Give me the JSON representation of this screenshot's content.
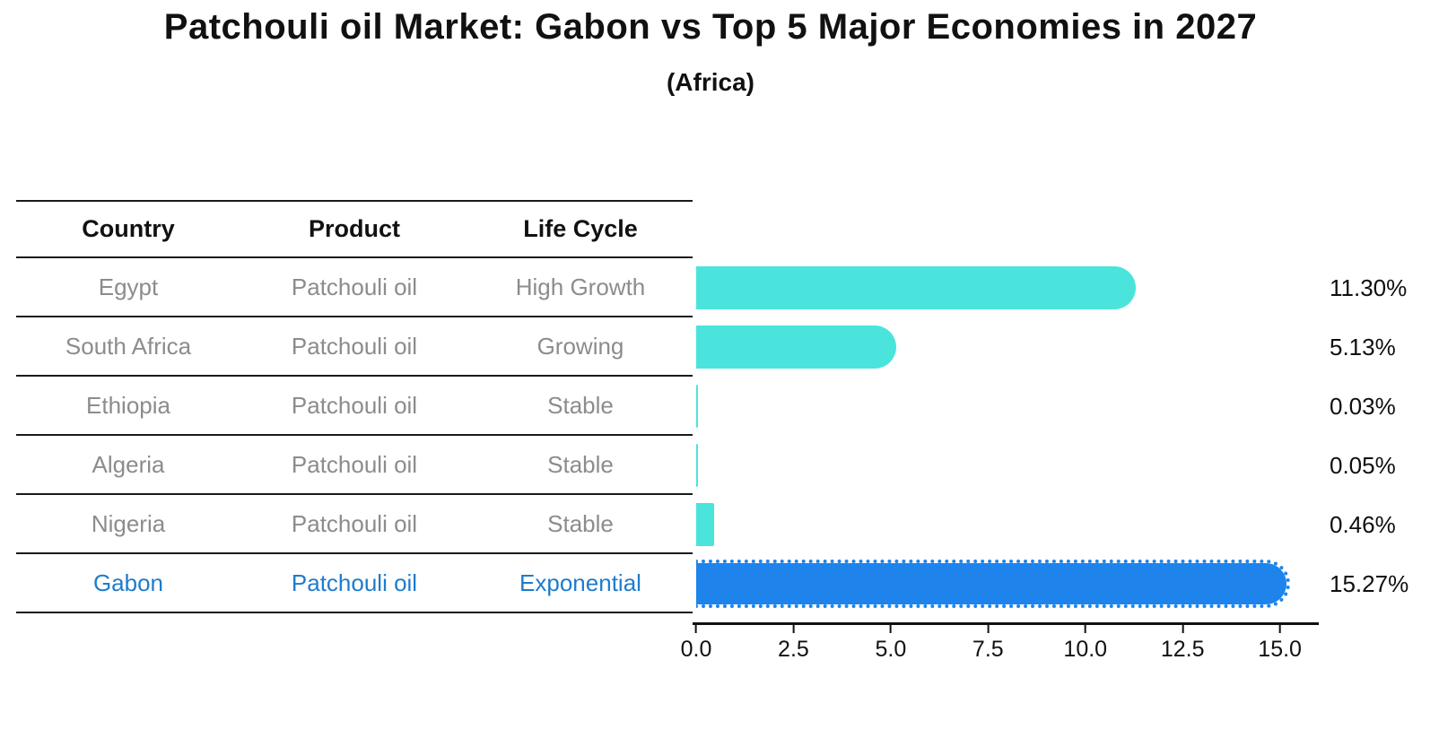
{
  "title": "Patchouli oil Market: Gabon vs Top 5 Major Economies in 2027",
  "subtitle": "(Africa)",
  "table": {
    "headers": {
      "country": "Country",
      "product": "Product",
      "life_cycle": "Life Cycle"
    },
    "rows": [
      {
        "country": "Egypt",
        "product": "Patchouli oil",
        "life_cycle": "High Growth"
      },
      {
        "country": "South Africa",
        "product": "Patchouli oil",
        "life_cycle": "Growing"
      },
      {
        "country": "Ethiopia",
        "product": "Patchouli oil",
        "life_cycle": "Stable"
      },
      {
        "country": "Algeria",
        "product": "Patchouli oil",
        "life_cycle": "Stable"
      },
      {
        "country": "Nigeria",
        "product": "Patchouli oil",
        "life_cycle": "Stable"
      },
      {
        "country": "Gabon",
        "product": "Patchouli oil",
        "life_cycle": "Exponential"
      }
    ],
    "highlight_row": "Gabon"
  },
  "chart_data": {
    "type": "bar",
    "orientation": "horizontal",
    "title": "Patchouli oil Market: Gabon vs Top 5 Major Economies in 2027",
    "subtitle": "(Africa)",
    "categories": [
      "Egypt",
      "South Africa",
      "Ethiopia",
      "Algeria",
      "Nigeria",
      "Gabon"
    ],
    "values": [
      11.3,
      5.13,
      0.03,
      0.05,
      0.46,
      15.27
    ],
    "value_labels": [
      "11.30%",
      "5.13%",
      "0.03%",
      "0.05%",
      "0.46%",
      "15.27%"
    ],
    "x_tick_labels": [
      "0.0",
      "2.5",
      "5.0",
      "7.5",
      "10.0",
      "12.5",
      "15.0"
    ],
    "xlim": [
      0,
      16
    ],
    "grid": false,
    "legend": "none",
    "highlight_category": "Gabon",
    "colors": {
      "bar_default": "#4ae4dc",
      "bar_highlight": "#1e84ec",
      "table_text_default": "#8c8c8c",
      "table_text_highlight": "#1e7ccc",
      "value_label_text": "#0f0f0f",
      "axis": "#111111"
    }
  }
}
